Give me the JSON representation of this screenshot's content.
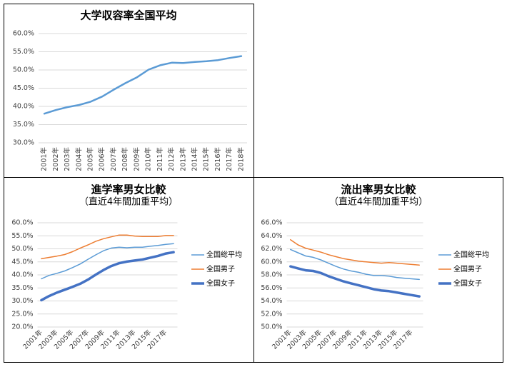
{
  "chart_data": [
    {
      "type": "line",
      "title": "大学収容率全国平均",
      "categories": [
        "2001年",
        "2002年",
        "2003年",
        "2004年",
        "2005年",
        "2006年",
        "2007年",
        "2008年",
        "2009年",
        "2010年",
        "2011年",
        "2012年",
        "2013年",
        "2014年",
        "2015年",
        "2016年",
        "2017年",
        "2018年"
      ],
      "series": [
        {
          "color": "#5b9bd5",
          "line_width": 2.5,
          "values": [
            38.0,
            39.0,
            39.8,
            40.4,
            41.3,
            42.7,
            44.6,
            46.4,
            48.0,
            50.1,
            51.3,
            52.0,
            51.9,
            52.2,
            52.4,
            52.7,
            53.3,
            53.8
          ]
        }
      ],
      "ylim": [
        30,
        60
      ],
      "yticks": [
        {
          "value": 30,
          "label": "30.0%"
        },
        {
          "value": 35,
          "label": "35.0%"
        },
        {
          "value": 40,
          "label": "40.0%"
        },
        {
          "value": 45,
          "label": "45.0%"
        },
        {
          "value": 50,
          "label": "50.0%"
        },
        {
          "value": 55,
          "label": "55.0%"
        },
        {
          "value": 60,
          "label": "60.0%"
        }
      ],
      "grid": true
    },
    {
      "type": "line",
      "title": "進学率男女比較",
      "subtitle": "（直近4年間加重平均）",
      "categories": [
        "2001年",
        null,
        "2003年",
        null,
        "2005年",
        null,
        "2007年",
        null,
        "2009年",
        null,
        "2011年",
        null,
        "2013年",
        null,
        "2015年",
        null,
        "2017年",
        null
      ],
      "series": [
        {
          "name": "全国総平均",
          "color": "#5b9bd5",
          "line_width": 1.5,
          "values": [
            38.5,
            39.8,
            40.6,
            41.5,
            42.8,
            44.2,
            46.0,
            47.7,
            49.3,
            50.3,
            50.6,
            50.4,
            50.6,
            50.6,
            51.0,
            51.3,
            51.7,
            52.0
          ]
        },
        {
          "name": "全国男子",
          "color": "#ed7d31",
          "line_width": 1.5,
          "values": [
            46.2,
            46.7,
            47.2,
            47.8,
            48.9,
            50.3,
            51.5,
            52.9,
            53.9,
            54.6,
            55.3,
            55.3,
            54.9,
            54.7,
            54.7,
            54.7,
            55.1,
            55.1
          ]
        },
        {
          "name": "全国女子",
          "color": "#4472c4",
          "line_width": 3.5,
          "values": [
            30.3,
            31.9,
            33.2,
            34.3,
            35.4,
            36.6,
            38.2,
            40.1,
            41.9,
            43.4,
            44.5,
            45.1,
            45.5,
            45.9,
            46.6,
            47.3,
            48.2,
            48.7
          ]
        }
      ],
      "ylim": [
        20,
        60
      ],
      "yticks": [
        {
          "value": 20,
          "label": "20.0%"
        },
        {
          "value": 25,
          "label": "25.0%"
        },
        {
          "value": 30,
          "label": "30.0%"
        },
        {
          "value": 35,
          "label": "35.0%"
        },
        {
          "value": 40,
          "label": "40.0%"
        },
        {
          "value": 45,
          "label": "45.0%"
        },
        {
          "value": 50,
          "label": "50.0%"
        },
        {
          "value": 55,
          "label": "55.0%"
        },
        {
          "value": 60,
          "label": "60.0%"
        }
      ],
      "grid": true,
      "legend": "right"
    },
    {
      "type": "line",
      "title": "流出率男女比較",
      "subtitle": "（直近4年間加重平均）",
      "categories": [
        "2001年",
        null,
        "2003年",
        null,
        "2005年",
        null,
        "2007年",
        null,
        "2009年",
        null,
        "2011年",
        null,
        "2013年",
        null,
        "2015年",
        null,
        "2017年",
        null
      ],
      "series": [
        {
          "name": "全国総平均",
          "color": "#5b9bd5",
          "line_width": 1.5,
          "values": [
            61.9,
            61.4,
            60.9,
            60.7,
            60.3,
            59.8,
            59.3,
            58.9,
            58.6,
            58.4,
            58.1,
            57.9,
            57.9,
            57.8,
            57.6,
            57.5,
            57.4,
            57.3
          ]
        },
        {
          "name": "全国男子",
          "color": "#ed7d31",
          "line_width": 1.5,
          "values": [
            63.4,
            62.6,
            62.1,
            61.8,
            61.5,
            61.1,
            60.8,
            60.5,
            60.3,
            60.1,
            60.0,
            59.9,
            59.8,
            59.9,
            59.8,
            59.7,
            59.6,
            59.5
          ]
        },
        {
          "name": "全国女子",
          "color": "#4472c4",
          "line_width": 3.5,
          "values": [
            59.3,
            59.0,
            58.7,
            58.6,
            58.3,
            57.8,
            57.4,
            57.0,
            56.7,
            56.4,
            56.1,
            55.8,
            55.6,
            55.5,
            55.3,
            55.1,
            54.9,
            54.7
          ]
        }
      ],
      "ylim": [
        50,
        66
      ],
      "yticks": [
        {
          "value": 50,
          "label": "50.0%"
        },
        {
          "value": 52,
          "label": "52.0%"
        },
        {
          "value": 54,
          "label": "54.0%"
        },
        {
          "value": 56,
          "label": "56.0%"
        },
        {
          "value": 58,
          "label": "58.0%"
        },
        {
          "value": 60,
          "label": "60.0%"
        },
        {
          "value": 62,
          "label": "62.0%"
        },
        {
          "value": 64,
          "label": "64.0%"
        },
        {
          "value": 66,
          "label": "66.0%"
        }
      ],
      "grid": true,
      "legend": "right"
    }
  ]
}
